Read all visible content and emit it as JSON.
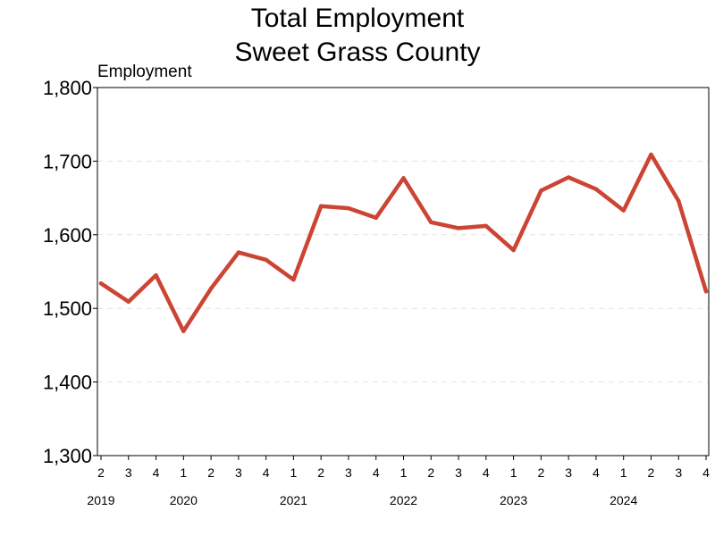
{
  "chart_data": {
    "type": "line",
    "title": [
      "Total Employment",
      "Sweet Grass County"
    ],
    "ylabel": "Employment",
    "xlabel": "",
    "ylim": [
      1300,
      1800
    ],
    "yticks": [
      1300,
      1400,
      1500,
      1600,
      1700,
      1800
    ],
    "ytick_labels": [
      "1,300",
      "1,400",
      "1,500",
      "1,600",
      "1,700",
      "1,800"
    ],
    "grid": "horizontal dashed",
    "line_color": "#cc4433",
    "x_quarters": [
      "2",
      "3",
      "4",
      "1",
      "2",
      "3",
      "4",
      "1",
      "2",
      "3",
      "4",
      "1",
      "2",
      "3",
      "4",
      "1",
      "2",
      "3",
      "4",
      "1",
      "2",
      "3",
      "4"
    ],
    "x_years": [
      {
        "label": "2019",
        "start": 0
      },
      {
        "label": "2020",
        "start": 3
      },
      {
        "label": "2021",
        "start": 7
      },
      {
        "label": "2022",
        "start": 11
      },
      {
        "label": "2023",
        "start": 15
      },
      {
        "label": "2024",
        "start": 19
      }
    ],
    "series": [
      {
        "values": [
          1534,
          1509,
          1545,
          1469,
          1527,
          1576,
          1566,
          1539,
          1639,
          1636,
          1623,
          1677,
          1617,
          1609,
          1612,
          1579,
          1660,
          1678,
          1662,
          1633,
          1709,
          1646,
          1523
        ]
      }
    ]
  }
}
